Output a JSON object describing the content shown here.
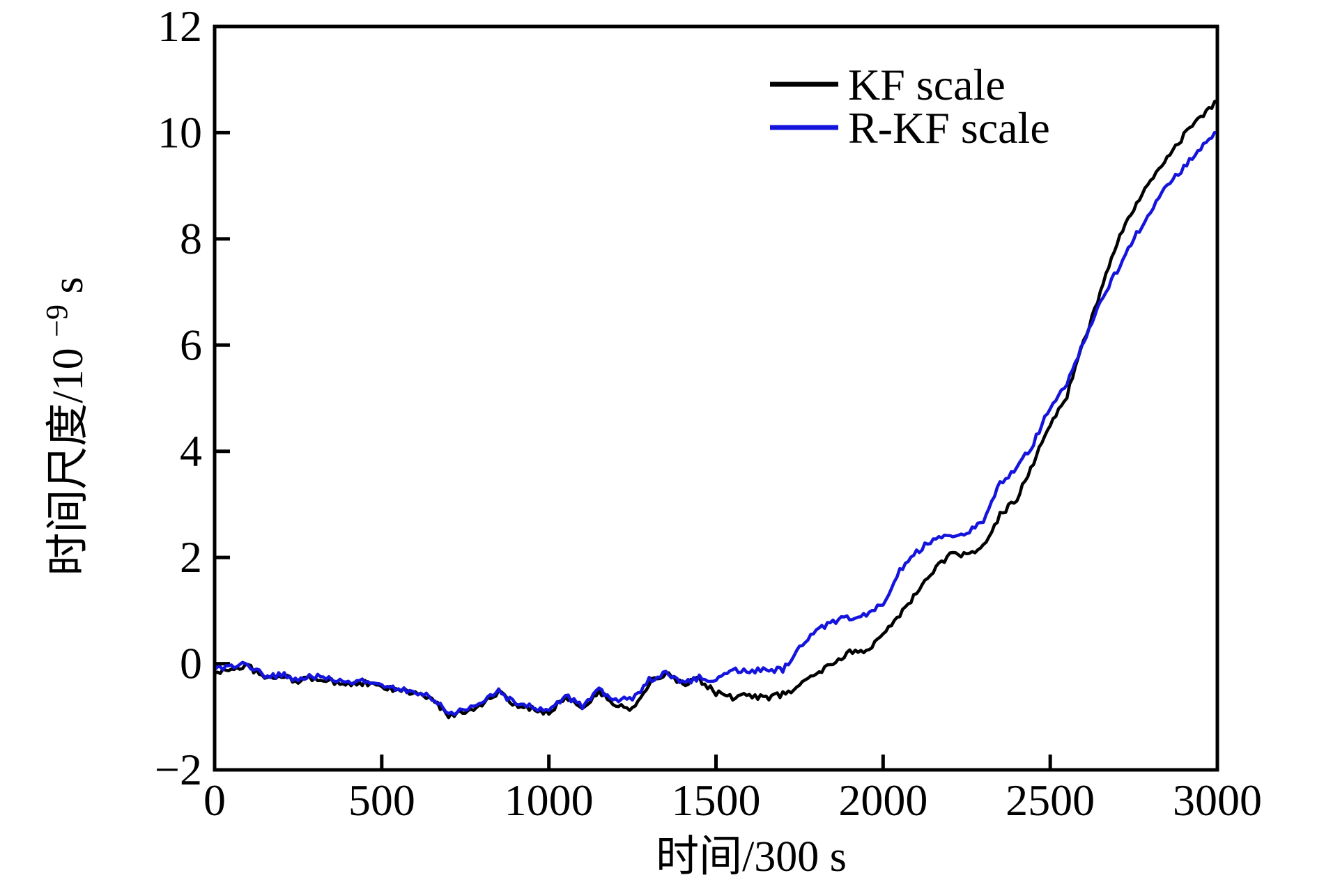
{
  "chart_data": {
    "type": "line",
    "title": "",
    "xlabel": "时间/300 s",
    "ylabel": "时间尺度/10⁻⁹ s",
    "ylabel_parts": {
      "main": "时间尺度/10",
      "sup": "−9",
      "suffix": " s"
    },
    "xlim": [
      0,
      3000
    ],
    "ylim": [
      -2,
      12
    ],
    "x_ticks": [
      0,
      500,
      1000,
      1500,
      2000,
      2500,
      3000
    ],
    "x_tick_labels": [
      "0",
      "500",
      "1000",
      "1500",
      "2000",
      "2500",
      "3000"
    ],
    "y_ticks": [
      -2,
      0,
      2,
      4,
      6,
      8,
      10,
      12
    ],
    "y_tick_labels": [
      "−2",
      "0",
      "2",
      "4",
      "6",
      "8",
      "10",
      "12"
    ],
    "grid": false,
    "legend_position": "upper right inside",
    "x": [
      0,
      50,
      100,
      150,
      200,
      250,
      300,
      350,
      400,
      450,
      500,
      550,
      600,
      650,
      700,
      750,
      800,
      850,
      900,
      950,
      1000,
      1050,
      1100,
      1150,
      1200,
      1250,
      1300,
      1350,
      1400,
      1450,
      1500,
      1550,
      1600,
      1650,
      1700,
      1750,
      1800,
      1850,
      1900,
      1950,
      2000,
      2050,
      2100,
      2150,
      2200,
      2250,
      2300,
      2350,
      2400,
      2450,
      2500,
      2550,
      2600,
      2650,
      2700,
      2750,
      2800,
      2850,
      2900,
      2950,
      3000
    ],
    "series": [
      {
        "name": "KF scale",
        "color": "#000000",
        "values": [
          -0.18,
          -0.1,
          -0.04,
          -0.28,
          -0.24,
          -0.32,
          -0.27,
          -0.34,
          -0.38,
          -0.37,
          -0.45,
          -0.5,
          -0.55,
          -0.68,
          -0.97,
          -0.9,
          -0.76,
          -0.54,
          -0.8,
          -0.85,
          -0.92,
          -0.62,
          -0.84,
          -0.54,
          -0.78,
          -0.85,
          -0.36,
          -0.18,
          -0.4,
          -0.3,
          -0.55,
          -0.64,
          -0.6,
          -0.64,
          -0.58,
          -0.42,
          -0.16,
          -0.02,
          0.22,
          0.22,
          0.6,
          0.92,
          1.32,
          1.76,
          2.05,
          2.04,
          2.2,
          2.8,
          3.1,
          3.8,
          4.5,
          5.05,
          6.05,
          7.0,
          7.95,
          8.55,
          9.1,
          9.5,
          9.95,
          10.3,
          10.6
        ]
      },
      {
        "name": "R-KF scale",
        "color": "#1414dd",
        "values": [
          -0.12,
          -0.07,
          -0.01,
          -0.25,
          -0.21,
          -0.29,
          -0.24,
          -0.31,
          -0.35,
          -0.34,
          -0.42,
          -0.47,
          -0.52,
          -0.65,
          -0.94,
          -0.87,
          -0.73,
          -0.51,
          -0.77,
          -0.82,
          -0.89,
          -0.59,
          -0.81,
          -0.51,
          -0.7,
          -0.67,
          -0.31,
          -0.15,
          -0.36,
          -0.26,
          -0.32,
          -0.12,
          -0.16,
          -0.1,
          -0.13,
          0.3,
          0.62,
          0.8,
          0.87,
          0.93,
          1.15,
          1.75,
          2.1,
          2.35,
          2.42,
          2.45,
          2.7,
          3.4,
          3.7,
          4.15,
          4.85,
          5.3,
          6.05,
          6.85,
          7.4,
          8.0,
          8.5,
          9.0,
          9.35,
          9.7,
          10.0
        ]
      }
    ],
    "axis_color": "#000000",
    "background_color": "#ffffff"
  }
}
